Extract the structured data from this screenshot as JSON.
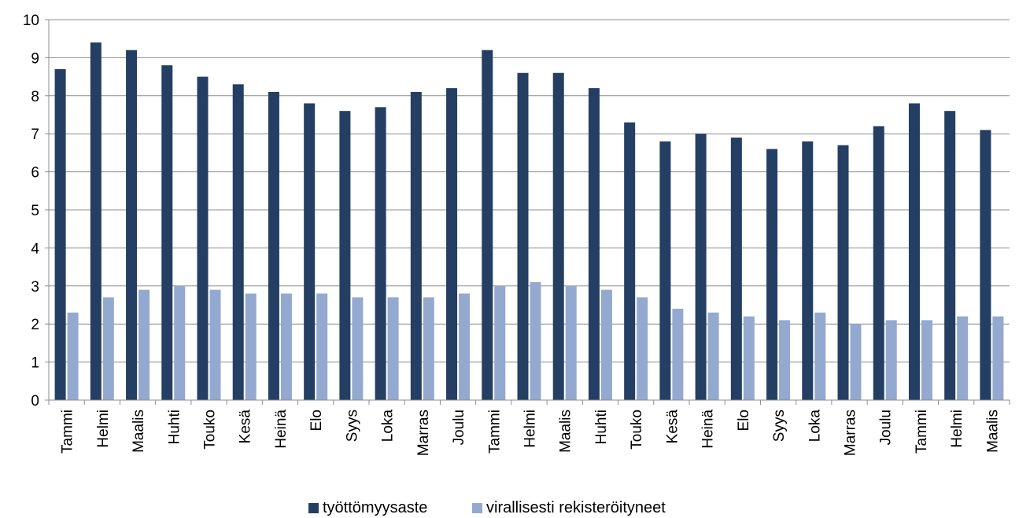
{
  "chart_data": {
    "type": "bar",
    "title": "",
    "xlabel": "",
    "ylabel": "",
    "ylim": [
      0,
      10
    ],
    "yticks": [
      0,
      1,
      2,
      3,
      4,
      5,
      6,
      7,
      8,
      9,
      10
    ],
    "grid": true,
    "legend_position": "bottom",
    "categories": [
      "Tammi",
      "Helmi",
      "Maalis",
      "Huhti",
      "Touko",
      "Kesä",
      "Heinä",
      "Elo",
      "Syys",
      "Loka",
      "Marras",
      "Joulu",
      "Tammi",
      "Helmi",
      "Maalis",
      "Huhti",
      "Touko",
      "Kesä",
      "Heinä",
      "Elo",
      "Syys",
      "Loka",
      "Marras",
      "Joulu",
      "Tammi",
      "Helmi",
      "Maalis"
    ],
    "series": [
      {
        "name": "työttömyysaste",
        "color": "#243f63",
        "values": [
          8.7,
          9.4,
          9.2,
          8.8,
          8.5,
          8.3,
          8.1,
          7.8,
          7.6,
          7.7,
          8.1,
          8.2,
          9.2,
          8.6,
          8.6,
          8.2,
          7.3,
          6.8,
          7.0,
          6.9,
          6.6,
          6.8,
          6.7,
          7.2,
          7.8,
          7.6,
          7.1
        ]
      },
      {
        "name": "virallisesti rekisteröityneet",
        "color": "#94a9cf",
        "values": [
          2.3,
          2.7,
          2.9,
          3.0,
          2.9,
          2.8,
          2.8,
          2.8,
          2.7,
          2.7,
          2.7,
          2.8,
          3.0,
          3.1,
          3.0,
          2.9,
          2.7,
          2.4,
          2.3,
          2.2,
          2.1,
          2.3,
          2.0,
          2.1,
          2.1,
          2.2,
          2.2
        ]
      }
    ]
  }
}
